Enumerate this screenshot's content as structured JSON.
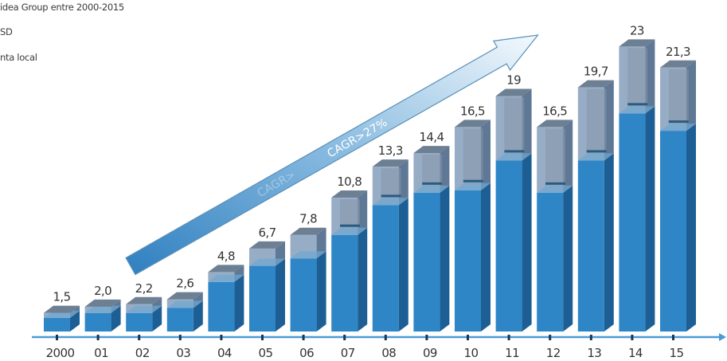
{
  "legend": {
    "title": "idea Group entre 2000-2015",
    "line2": "SD",
    "line3": "nta local"
  },
  "colors": {
    "solid_front": "#2f86c6",
    "solid_side": "#1d5f94",
    "solid_top": "#6fa6d0",
    "glass_front": "#8ea6c1",
    "glass_side": "#5f7896",
    "glass_top": "#6d7f92",
    "axis": "#4a9ad6",
    "tick_mark": "#1e3550"
  },
  "arrow": {
    "label": "CAGR>27%",
    "faded_label": "CAGR>"
  },
  "chart_data": {
    "type": "bar",
    "categories": [
      "2000",
      "01",
      "02",
      "03",
      "04",
      "05",
      "06",
      "07",
      "08",
      "09",
      "10",
      "11",
      "12",
      "13",
      "14",
      "15"
    ],
    "series": [
      {
        "values": [
          1.5,
          2.0,
          2.2,
          2.6,
          4.8,
          6.7,
          7.8,
          10.8,
          13.3,
          14.4,
          16.5,
          19,
          16.5,
          19.7,
          23,
          21.3
        ],
        "labels": [
          "1,5",
          "2,0",
          "2,2",
          "2,6",
          "4,8",
          "6,7",
          "7,8",
          "10,8",
          "13,3",
          "14,4",
          "16,5",
          "19",
          "16,5",
          "19,7",
          "23",
          "21,3"
        ]
      },
      {
        "values": [
          1.1,
          1.5,
          1.5,
          1.9,
          4.0,
          5.3,
          5.9,
          7.8,
          10.2,
          11.2,
          11.4,
          13.8,
          11.2,
          13.8,
          17.6,
          16.2
        ]
      }
    ],
    "ylim": [
      0,
      25
    ]
  }
}
